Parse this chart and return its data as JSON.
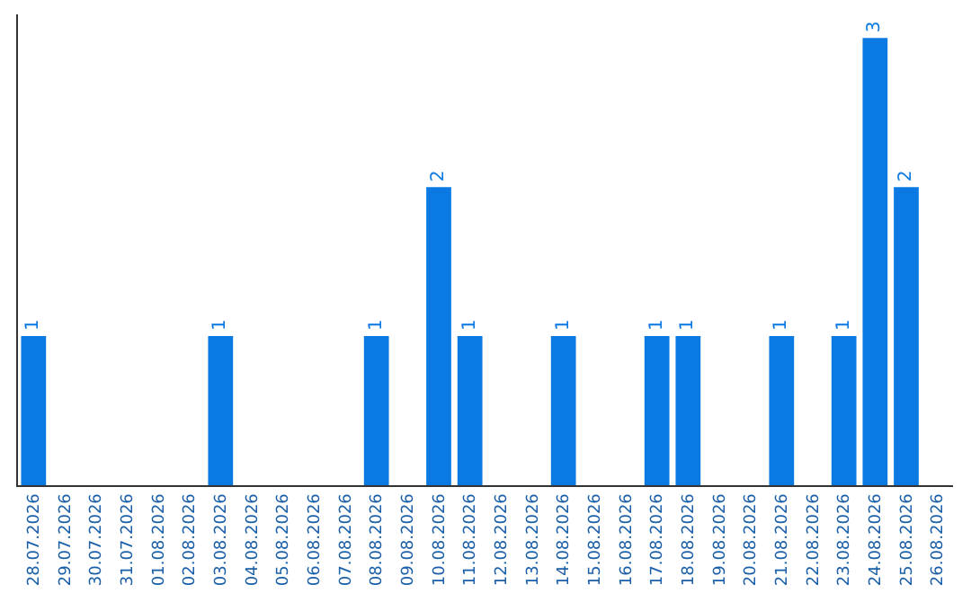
{
  "chart_data": {
    "type": "bar",
    "categories": [
      "28.07.2026",
      "29.07.2026",
      "30.07.2026",
      "31.07.2026",
      "01.08.2026",
      "02.08.2026",
      "03.08.2026",
      "04.08.2026",
      "05.08.2026",
      "06.08.2026",
      "07.08.2026",
      "08.08.2026",
      "09.08.2026",
      "10.08.2026",
      "11.08.2026",
      "12.08.2026",
      "13.08.2026",
      "14.08.2026",
      "15.08.2026",
      "16.08.2026",
      "17.08.2026",
      "18.08.2026",
      "19.08.2026",
      "20.08.2026",
      "21.08.2026",
      "22.08.2026",
      "23.08.2026",
      "24.08.2026",
      "25.08.2026",
      "26.08.2026"
    ],
    "values": [
      1,
      0,
      0,
      0,
      0,
      0,
      1,
      0,
      0,
      0,
      0,
      1,
      0,
      2,
      1,
      0,
      0,
      1,
      0,
      0,
      1,
      1,
      0,
      0,
      1,
      0,
      1,
      3,
      2,
      0
    ],
    "value_labels": [
      "1",
      null,
      null,
      null,
      null,
      null,
      "1",
      null,
      null,
      null,
      null,
      "1",
      null,
      "2",
      "1",
      null,
      null,
      "1",
      null,
      null,
      "1",
      "1",
      null,
      null,
      "1",
      null,
      "1",
      "3",
      "2",
      null
    ],
    "color": "#0a7ae2",
    "legend": false,
    "tick_labels": "x"
  }
}
